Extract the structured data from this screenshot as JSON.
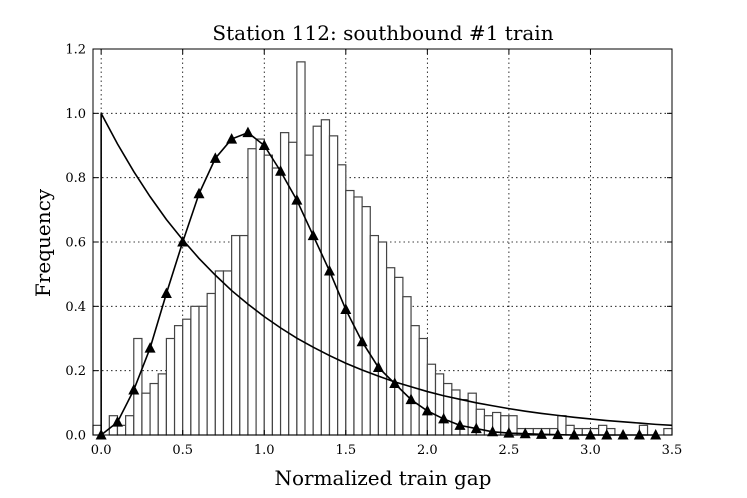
{
  "chart_data": {
    "type": "histogram",
    "title": "Station 112: southbound #1 train",
    "xlabel": "Normalized train gap",
    "ylabel": "Frequency",
    "xlim": [
      -0.05,
      3.5
    ],
    "ylim": [
      0.0,
      1.2
    ],
    "xticks": [
      "0.0",
      "0.5",
      "1.0",
      "1.5",
      "2.0",
      "2.5",
      "3.0",
      "3.5"
    ],
    "xtick_values": [
      0.0,
      0.5,
      1.0,
      1.5,
      2.0,
      2.5,
      3.0,
      3.5
    ],
    "yticks": [
      "0.0",
      "0.2",
      "0.4",
      "0.6",
      "0.8",
      "1.0",
      "1.2"
    ],
    "ytick_values": [
      0.0,
      0.2,
      0.4,
      0.6,
      0.8,
      1.0,
      1.2
    ],
    "grid": true,
    "histogram": {
      "bin_width": 0.05,
      "bin_start": -0.05,
      "values": [
        0.03,
        0.0,
        0.06,
        0.03,
        0.06,
        0.3,
        0.13,
        0.16,
        0.19,
        0.3,
        0.34,
        0.36,
        0.4,
        0.4,
        0.44,
        0.51,
        0.51,
        0.62,
        0.62,
        0.89,
        0.92,
        0.87,
        0.83,
        0.94,
        0.91,
        1.16,
        0.87,
        0.96,
        0.98,
        0.93,
        0.84,
        0.76,
        0.74,
        0.71,
        0.62,
        0.6,
        0.52,
        0.49,
        0.43,
        0.34,
        0.3,
        0.22,
        0.19,
        0.16,
        0.14,
        0.11,
        0.13,
        0.08,
        0.06,
        0.07,
        0.06,
        0.06,
        0.02,
        0.02,
        0.02,
        0.02,
        0.02,
        0.06,
        0.03,
        0.02,
        0.02,
        0.02,
        0.03,
        0.02,
        0.0,
        0.0,
        0.0,
        0.03,
        0.0,
        0.0,
        0.02,
        0.0,
        0.0,
        0.0,
        0.0,
        0.0,
        0.0,
        0.0,
        0.0,
        0.0,
        0.0,
        0.0,
        0.0,
        0.0,
        0.0,
        0.02,
        0.0,
        0.03,
        0.0,
        0.0,
        0.0,
        0.0,
        0.0,
        0.0,
        0.0,
        0.0,
        0.0,
        0.0,
        0.0,
        0.0,
        0.02,
        0.0,
        0.0,
        0.0,
        0.0,
        0.0,
        0.0,
        0.03,
        0.0,
        0.0,
        0.0,
        0.0
      ]
    },
    "series": [
      {
        "type": "line",
        "x": [
          0.0,
          0.1,
          0.2,
          0.3,
          0.4,
          0.5,
          0.6,
          0.7,
          0.8,
          0.9,
          1.0,
          1.1,
          1.2,
          1.3,
          1.4,
          1.5,
          1.6,
          1.7,
          1.8,
          1.9,
          2.0,
          2.1,
          2.2,
          2.3,
          2.4,
          2.5,
          2.6,
          2.7,
          2.8,
          2.9,
          3.0,
          3.1,
          3.2,
          3.3,
          3.4,
          3.5
        ],
        "y": [
          1.0,
          0.905,
          0.819,
          0.741,
          0.67,
          0.607,
          0.549,
          0.497,
          0.449,
          0.407,
          0.368,
          0.333,
          0.301,
          0.273,
          0.247,
          0.223,
          0.202,
          0.183,
          0.165,
          0.15,
          0.135,
          0.122,
          0.111,
          0.1,
          0.091,
          0.082,
          0.074,
          0.067,
          0.061,
          0.055,
          0.05,
          0.045,
          0.041,
          0.037,
          0.033,
          0.03
        ]
      },
      {
        "type": "line",
        "marker": "triangle",
        "x": [
          0.0,
          0.1,
          0.2,
          0.3,
          0.4,
          0.5,
          0.6,
          0.7,
          0.8,
          0.9,
          1.0,
          1.1,
          1.2,
          1.3,
          1.4,
          1.5,
          1.6,
          1.7,
          1.8,
          1.9,
          2.0,
          2.1,
          2.2,
          2.3,
          2.4,
          2.5,
          2.6,
          2.7,
          2.8,
          2.9,
          3.0,
          3.1,
          3.2,
          3.3,
          3.4
        ],
        "y": [
          0.0,
          0.04,
          0.14,
          0.27,
          0.44,
          0.6,
          0.75,
          0.86,
          0.92,
          0.94,
          0.9,
          0.82,
          0.73,
          0.62,
          0.51,
          0.39,
          0.29,
          0.21,
          0.16,
          0.11,
          0.075,
          0.05,
          0.03,
          0.02,
          0.01,
          0.006,
          0.004,
          0.002,
          0.001,
          0.0,
          0.0,
          0.0,
          0.0,
          0.0,
          0.0
        ]
      }
    ]
  }
}
